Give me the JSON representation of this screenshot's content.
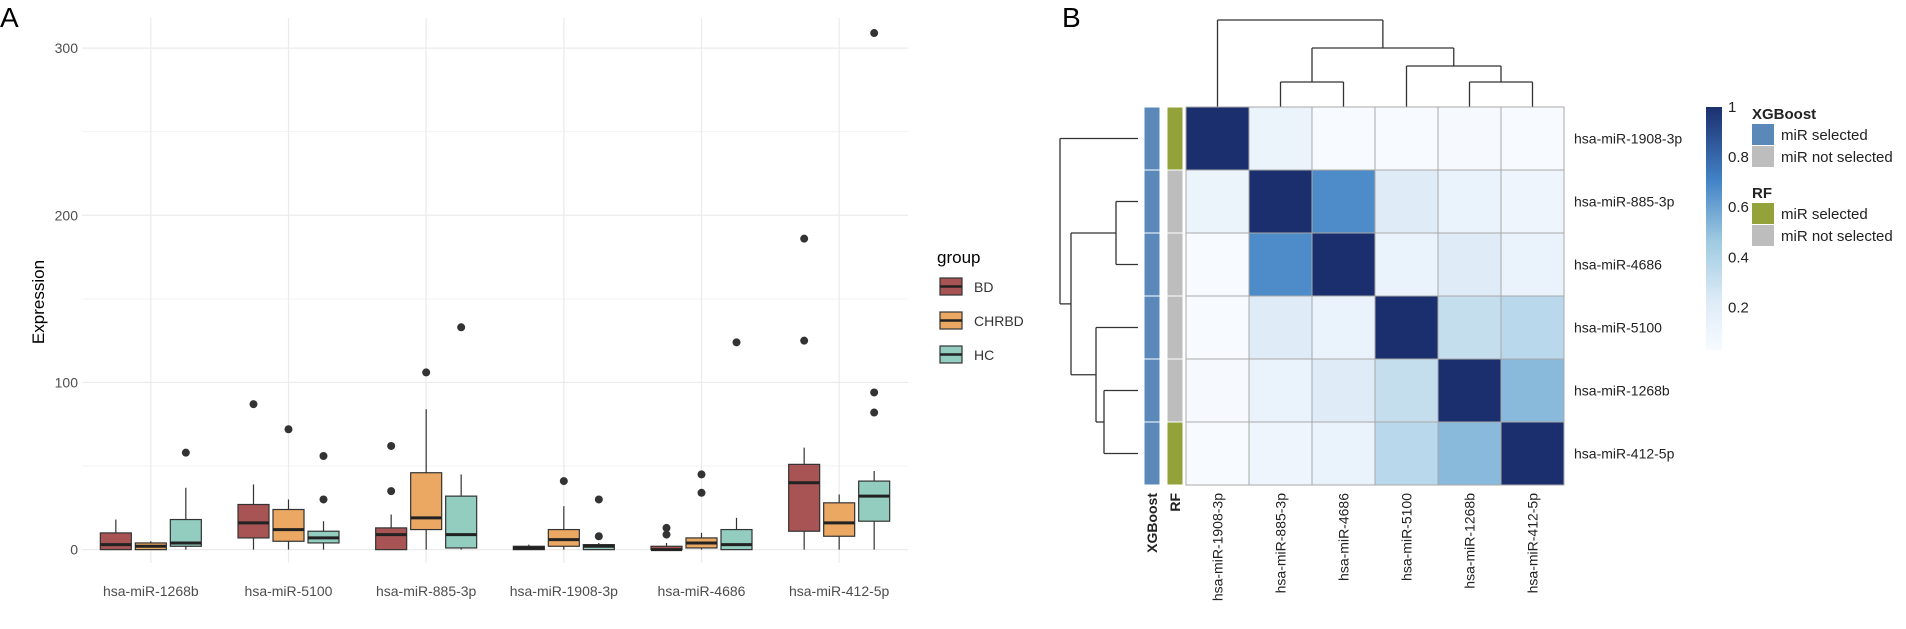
{
  "panels": {
    "a": "A",
    "b": "B"
  },
  "chart_data": [
    {
      "type": "box",
      "panel": "A",
      "title": "",
      "xlabel": "",
      "ylabel": "Expression",
      "ylim": [
        -8,
        318
      ],
      "yticks": [
        0,
        100,
        200,
        300
      ],
      "categories": [
        "hsa-miR-1268b",
        "hsa-miR-5100",
        "hsa-miR-885-3p",
        "hsa-miR-1908-3p",
        "hsa-miR-4686",
        "hsa-miR-412-5p"
      ],
      "legend": {
        "title": "group",
        "position": "right"
      },
      "groups": [
        {
          "name": "BD",
          "color": "#a85454",
          "boxes": [
            {
              "min": 0,
              "q1": 0,
              "median": 3,
              "q3": 10,
              "max": 18,
              "outliers": []
            },
            {
              "min": 0,
              "q1": 7,
              "median": 16,
              "q3": 27,
              "max": 39,
              "outliers": [
                87
              ]
            },
            {
              "min": 0,
              "q1": 0,
              "median": 9,
              "q3": 13,
              "max": 21,
              "outliers": [
                35,
                62
              ]
            },
            {
              "min": 0,
              "q1": 0,
              "median": 1,
              "q3": 2,
              "max": 3,
              "outliers": []
            },
            {
              "min": 0,
              "q1": 0,
              "median": 0,
              "q3": 2,
              "max": 4,
              "outliers": [
                9,
                13
              ]
            },
            {
              "min": 0,
              "q1": 11,
              "median": 40,
              "q3": 51,
              "max": 61,
              "outliers": [
                125,
                186
              ]
            }
          ]
        },
        {
          "name": "CHRBD",
          "color": "#eaa862",
          "boxes": [
            {
              "min": 0,
              "q1": 0,
              "median": 2,
              "q3": 4,
              "max": 5,
              "outliers": []
            },
            {
              "min": 0,
              "q1": 5,
              "median": 12,
              "q3": 24,
              "max": 30,
              "outliers": [
                72
              ]
            },
            {
              "min": 0,
              "q1": 12,
              "median": 19,
              "q3": 46,
              "max": 84,
              "outliers": [
                106
              ]
            },
            {
              "min": 0,
              "q1": 2,
              "median": 6,
              "q3": 12,
              "max": 26,
              "outliers": [
                41
              ]
            },
            {
              "min": 0,
              "q1": 1,
              "median": 4,
              "q3": 7,
              "max": 10,
              "outliers": [
                34,
                45
              ]
            },
            {
              "min": 0,
              "q1": 8,
              "median": 16,
              "q3": 28,
              "max": 33,
              "outliers": []
            }
          ]
        },
        {
          "name": "HC",
          "color": "#92cdc0",
          "boxes": [
            {
              "min": 0,
              "q1": 2,
              "median": 4,
              "q3": 18,
              "max": 37,
              "outliers": [
                58
              ]
            },
            {
              "min": 0,
              "q1": 4,
              "median": 7,
              "q3": 11,
              "max": 17,
              "outliers": [
                30,
                56
              ]
            },
            {
              "min": 0,
              "q1": 1,
              "median": 9,
              "q3": 32,
              "max": 45,
              "outliers": [
                133
              ]
            },
            {
              "min": 0,
              "q1": 0,
              "median": 2,
              "q3": 3,
              "max": 4,
              "outliers": [
                8,
                30
              ]
            },
            {
              "min": 0,
              "q1": 0,
              "median": 3,
              "q3": 12,
              "max": 19,
              "outliers": [
                124
              ]
            },
            {
              "min": 0,
              "q1": 17,
              "median": 32,
              "q3": 41,
              "max": 47,
              "outliers": [
                82,
                94,
                309
              ]
            }
          ]
        }
      ]
    },
    {
      "type": "heatmap",
      "panel": "B",
      "labels": [
        "hsa-miR-1908-3p",
        "hsa-miR-885-3p",
        "hsa-miR-4686",
        "hsa-miR-5100",
        "hsa-miR-1268b",
        "hsa-miR-412-5p"
      ],
      "values": [
        [
          1.0,
          0.12,
          0.03,
          0.03,
          0.04,
          0.03
        ],
        [
          0.12,
          1.0,
          0.68,
          0.22,
          0.13,
          0.1
        ],
        [
          0.03,
          0.68,
          1.0,
          0.13,
          0.22,
          0.13
        ],
        [
          0.03,
          0.22,
          0.13,
          1.0,
          0.32,
          0.36
        ],
        [
          0.04,
          0.13,
          0.22,
          0.32,
          1.0,
          0.52
        ],
        [
          0.03,
          0.1,
          0.13,
          0.36,
          0.52,
          1.0
        ]
      ],
      "colorbar": {
        "ticks": [
          1,
          0.8,
          0.6,
          0.4,
          0.2
        ],
        "tick_labels": [
          "1",
          "0.8",
          "0.6",
          "0.4",
          "0.2"
        ],
        "range": [
          0.03,
          1
        ],
        "low_color": "#f7fbff",
        "high_color": "#1b2f6e"
      },
      "annotations": [
        {
          "name": "XGBoost",
          "values": [
            "miR selected",
            "miR selected",
            "miR selected",
            "miR selected",
            "miR selected",
            "miR selected"
          ],
          "legend": [
            {
              "label": "miR selected",
              "color": "#5a88b8"
            },
            {
              "label": "miR not selected",
              "color": "#bdbdbd"
            }
          ]
        },
        {
          "name": "RF",
          "values": [
            "miR selected",
            "miR not selected",
            "miR not selected",
            "miR not selected",
            "miR not selected",
            "miR selected"
          ],
          "legend": [
            {
              "label": "miR selected",
              "color": "#94a23a"
            },
            {
              "label": "miR not selected",
              "color": "#bdbdbd"
            }
          ]
        }
      ]
    }
  ]
}
